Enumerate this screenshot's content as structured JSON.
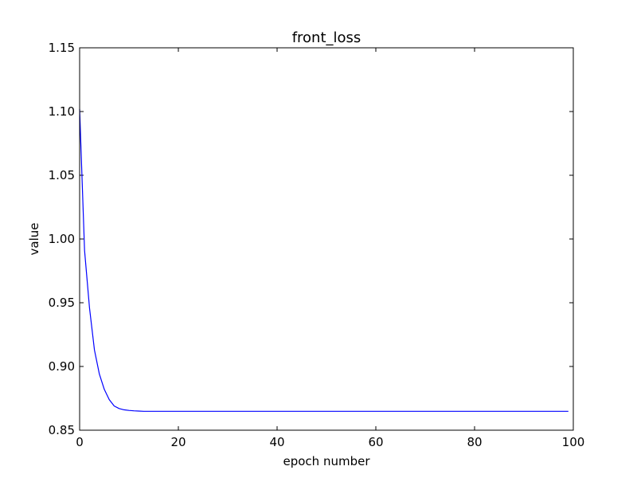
{
  "chart_data": {
    "type": "line",
    "title": "front_loss",
    "xlabel": "epoch number",
    "ylabel": "value",
    "xlim": [
      0,
      100
    ],
    "ylim": [
      0.85,
      1.15
    ],
    "xticks": [
      0,
      20,
      40,
      60,
      80,
      100
    ],
    "xtick_labels": [
      "0",
      "20",
      "40",
      "60",
      "80",
      "100"
    ],
    "yticks": [
      0.85,
      0.9,
      0.95,
      1.0,
      1.05,
      1.1,
      1.15
    ],
    "ytick_labels": [
      "0.85",
      "0.90",
      "0.95",
      "1.00",
      "1.05",
      "1.10",
      "1.15"
    ],
    "grid": false,
    "line_color": "#0000ff",
    "series": [
      {
        "x": [
          0,
          1,
          2,
          3,
          4,
          5,
          6,
          7,
          8,
          9,
          10,
          11,
          12,
          13,
          14,
          15,
          20,
          25,
          30,
          35,
          40,
          45,
          50,
          55,
          60,
          65,
          70,
          75,
          80,
          85,
          90,
          95,
          99
        ],
        "values": [
          1.102,
          0.991,
          0.946,
          0.913,
          0.894,
          0.882,
          0.874,
          0.869,
          0.867,
          0.866,
          0.8655,
          0.8652,
          0.865,
          0.8648,
          0.8648,
          0.8648,
          0.8648,
          0.8648,
          0.8648,
          0.8648,
          0.8648,
          0.8648,
          0.8648,
          0.8648,
          0.8648,
          0.8648,
          0.8648,
          0.8648,
          0.8648,
          0.8648,
          0.8648,
          0.8648,
          0.8648
        ]
      }
    ]
  }
}
